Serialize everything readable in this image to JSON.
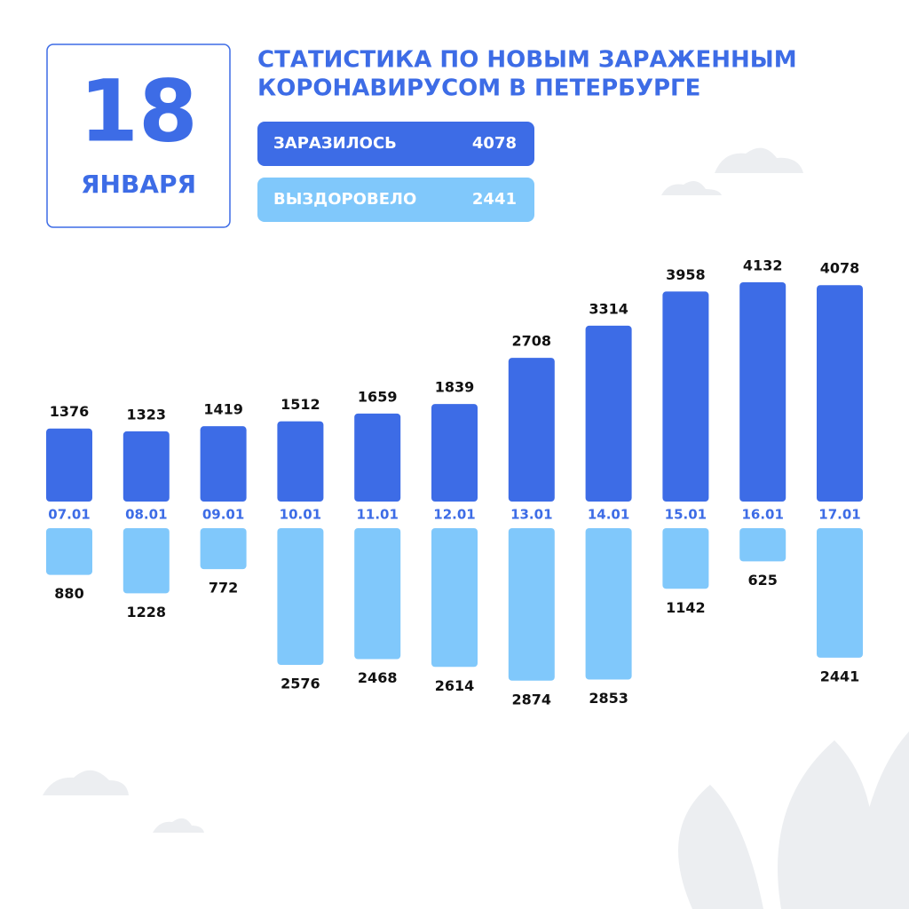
{
  "date_card": {
    "day": "18",
    "month": "ЯНВАРЯ"
  },
  "chart_data": {
    "type": "diverging-bar",
    "title": [
      "СТАТИСТИКА ПО НОВЫМ ЗАРАЖЕННЫМ",
      "КОРОНАВИРУСОМ В ПЕТЕРБУРГЕ"
    ],
    "categories": [
      "07.01",
      "08.01",
      "09.01",
      "10.01",
      "11.01",
      "12.01",
      "13.01",
      "14.01",
      "15.01",
      "16.01",
      "17.01"
    ],
    "series": [
      {
        "name": "ЗАРАЗИЛОСЬ",
        "color": "#3d6ce6",
        "summary_value": 4078,
        "values": [
          1376,
          1323,
          1419,
          1512,
          1659,
          1839,
          2708,
          3314,
          3958,
          4132,
          4078
        ]
      },
      {
        "name": "ВЫЗДОРОВЕЛО",
        "color": "#80c8fb",
        "summary_value": 2441,
        "values": [
          880,
          1228,
          772,
          2576,
          2468,
          2614,
          2874,
          2853,
          1142,
          625,
          2441
        ]
      }
    ]
  }
}
